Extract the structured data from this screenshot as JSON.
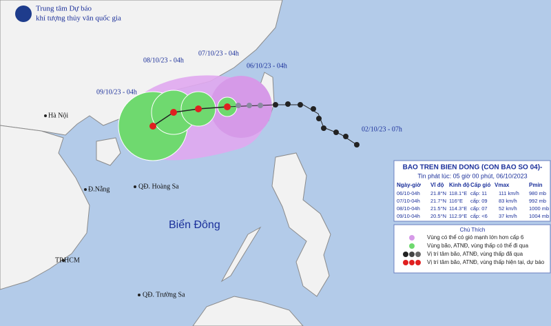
{
  "header": {
    "line1": "Trung tâm Dự báo",
    "line2": "khí tượng thủy văn quốc gia"
  },
  "time_labels": [
    "08/10/23 - 04h",
    "07/10/23 - 04h",
    "06/10/23 - 04h",
    "09/10/23 - 04h",
    "02/10/23 - 07h"
  ],
  "places": [
    "Hà Nội",
    "Đ.Nẵng",
    "QĐ. Hoàng Sa",
    "Biển Đông",
    "TP.HCM",
    "QĐ. Trường Sa"
  ],
  "info": {
    "title": "BAO TREN BIEN DONG (CON BAO SO 04)-",
    "subtitle": "Tin phát lúc: 05 giờ 00 phút, 06/10/2023",
    "columns": [
      "Ngày-giờ",
      "Vĩ độ",
      "Kinh độ",
      "Cấp gió",
      "Vmax",
      "Pmin"
    ],
    "rows": [
      [
        "06/10-04h",
        "21.8°N",
        "118.1°E",
        "cấp: 11",
        "111 km/h",
        "980 mb"
      ],
      [
        "07/10-04h",
        "21.7°N",
        "116°E",
        "cấp: 09",
        "83 km/h",
        "992 mb"
      ],
      [
        "08/10-04h",
        "21.5°N",
        "114.3°E",
        "cấp: 07",
        "52 km/h",
        "1000 mb"
      ],
      [
        "09/10-04h",
        "20.5°N",
        "112.9°E",
        "cấp: <6",
        "37 km/h",
        "1004 mb"
      ]
    ]
  },
  "legend": {
    "title": "Chú Thích",
    "items": [
      "Vùng có thể có gió mạnh lớn hơn cấp 6",
      "Vùng bão, ATNĐ, vùng thấp có thể đi qua",
      "Vị trí tâm bão, ATNĐ, vùng thấp đã qua",
      "Vị trí tâm bão, ATNĐ, vùng thấp hiện tại, dự báo"
    ]
  }
}
